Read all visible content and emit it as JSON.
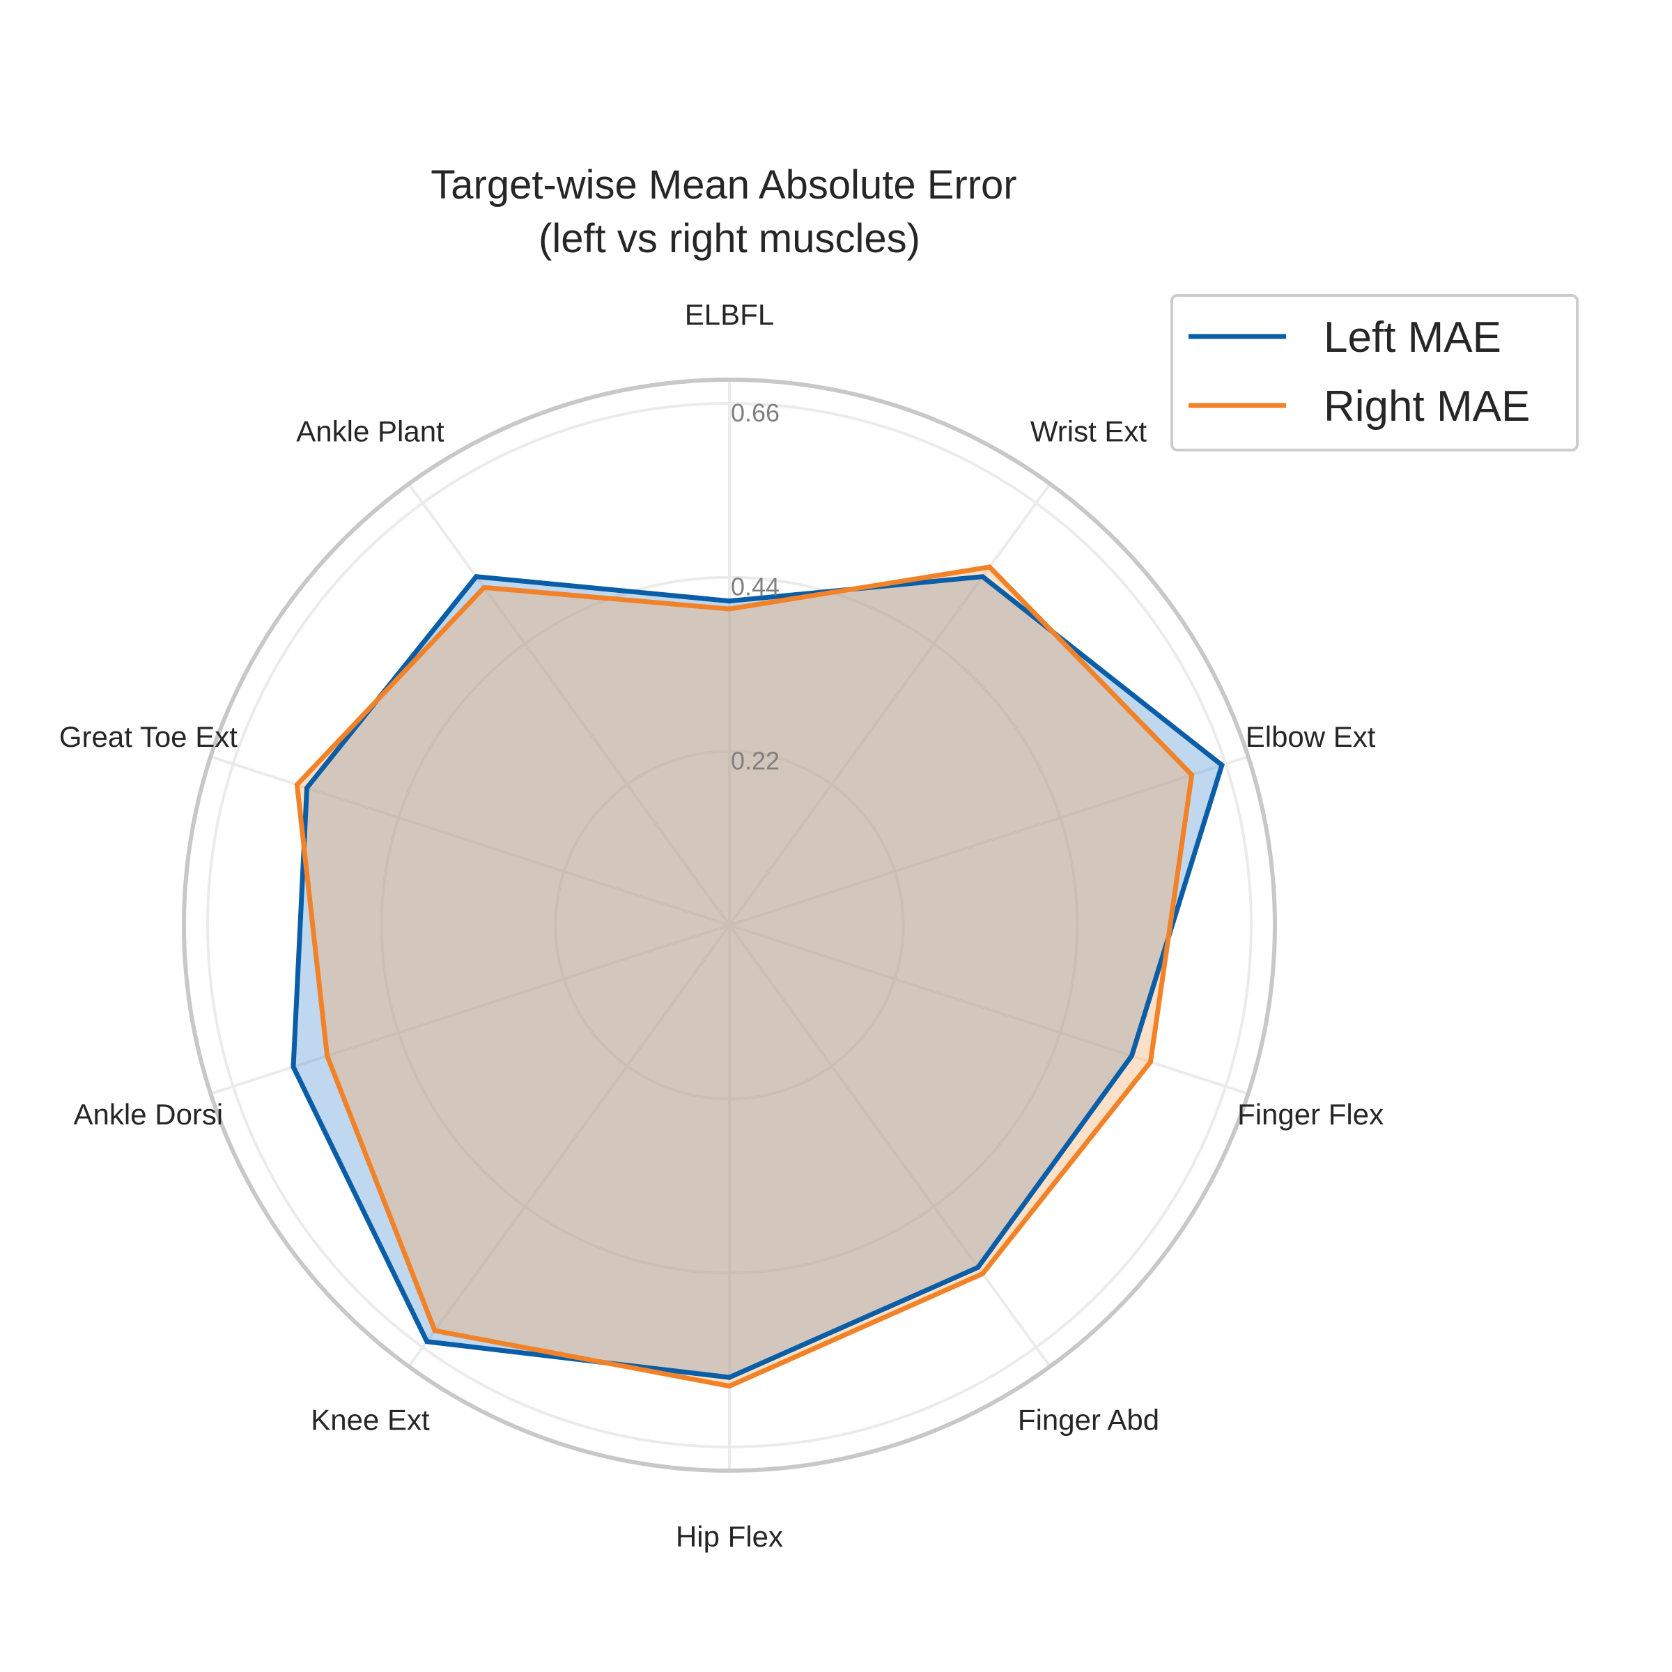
{
  "chart_data": {
    "type": "radar",
    "title": "Target-wise Mean Absolute Error\n(left vs right muscles)",
    "categories": [
      "ELBFL",
      "Wrist Ext",
      "Elbow Ext",
      "Finger Flex",
      "Finger Abd",
      "Hip Flex",
      "Knee Ext",
      "Ankle Dorsi",
      "Great Toe Ext",
      "Ankle Plant"
    ],
    "radial_ticks": [
      0.22,
      0.44,
      0.66
    ],
    "radial_tick_labels": [
      "0.22",
      "0.44",
      "0.66"
    ],
    "rlim": [
      0,
      0.69
    ],
    "grid": true,
    "legend_position": "top-right",
    "series": [
      {
        "name": "Left MAE",
        "color": "#0a5ea8",
        "fill": "#4a90d0",
        "values": [
          0.41,
          0.545,
          0.655,
          0.535,
          0.535,
          0.572,
          0.651,
          0.58,
          0.562,
          0.545
        ]
      },
      {
        "name": "Right MAE",
        "color": "#f28228",
        "fill": "#f5a860",
        "values": [
          0.4,
          0.56,
          0.615,
          0.56,
          0.545,
          0.583,
          0.634,
          0.535,
          0.575,
          0.528
        ]
      }
    ]
  }
}
